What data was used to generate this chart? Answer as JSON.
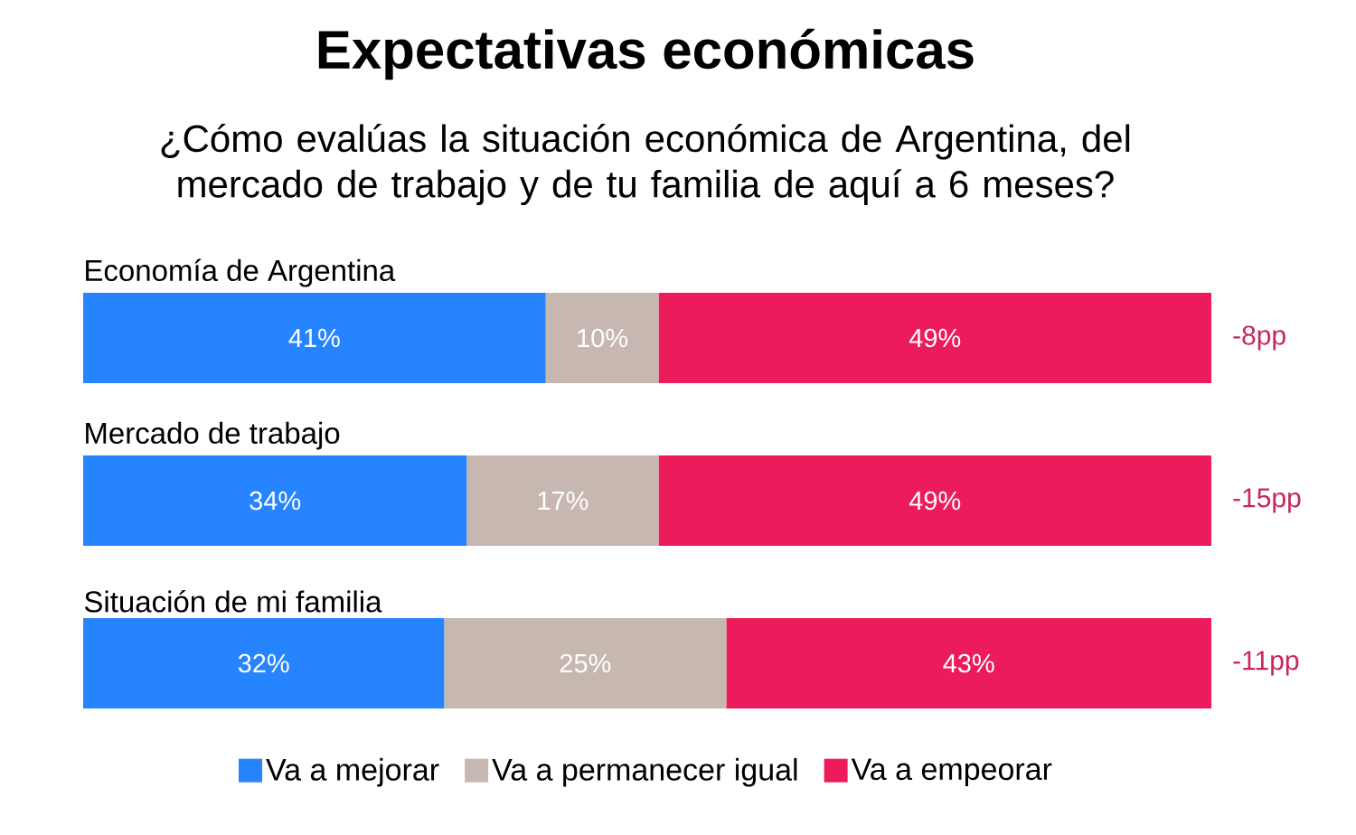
{
  "chart_data": {
    "type": "bar",
    "orientation": "horizontal",
    "stacked": true,
    "title": "Expectativas económicas",
    "subtitle": "¿Cómo evalúas la situación económica de Argentina, del mercado de trabajo y de tu familia de aquí a 6 meses?",
    "categories": [
      "Economía de Argentina",
      "Mercado de trabajo",
      "Situación de mi familia"
    ],
    "series": [
      {
        "name": "Va a mejorar",
        "color": "#2684ff",
        "values": [
          41,
          34,
          32
        ],
        "value_labels": [
          "41%",
          "34%",
          "32%"
        ]
      },
      {
        "name": "Va a permanecer igual",
        "color": "#c6b8b0",
        "values": [
          10,
          17,
          25
        ],
        "value_labels": [
          "10%",
          "17%",
          "25%"
        ]
      },
      {
        "name": "Va a empeorar",
        "color": "#ec1c5c",
        "values": [
          49,
          49,
          43
        ],
        "value_labels": [
          "49%",
          "49%",
          "43%"
        ]
      }
    ],
    "xlim": [
      0,
      100
    ],
    "tick_labels": "y",
    "legend": "bottom",
    "annotations": [
      "-8pp",
      "-15pp",
      "-11pp"
    ]
  }
}
